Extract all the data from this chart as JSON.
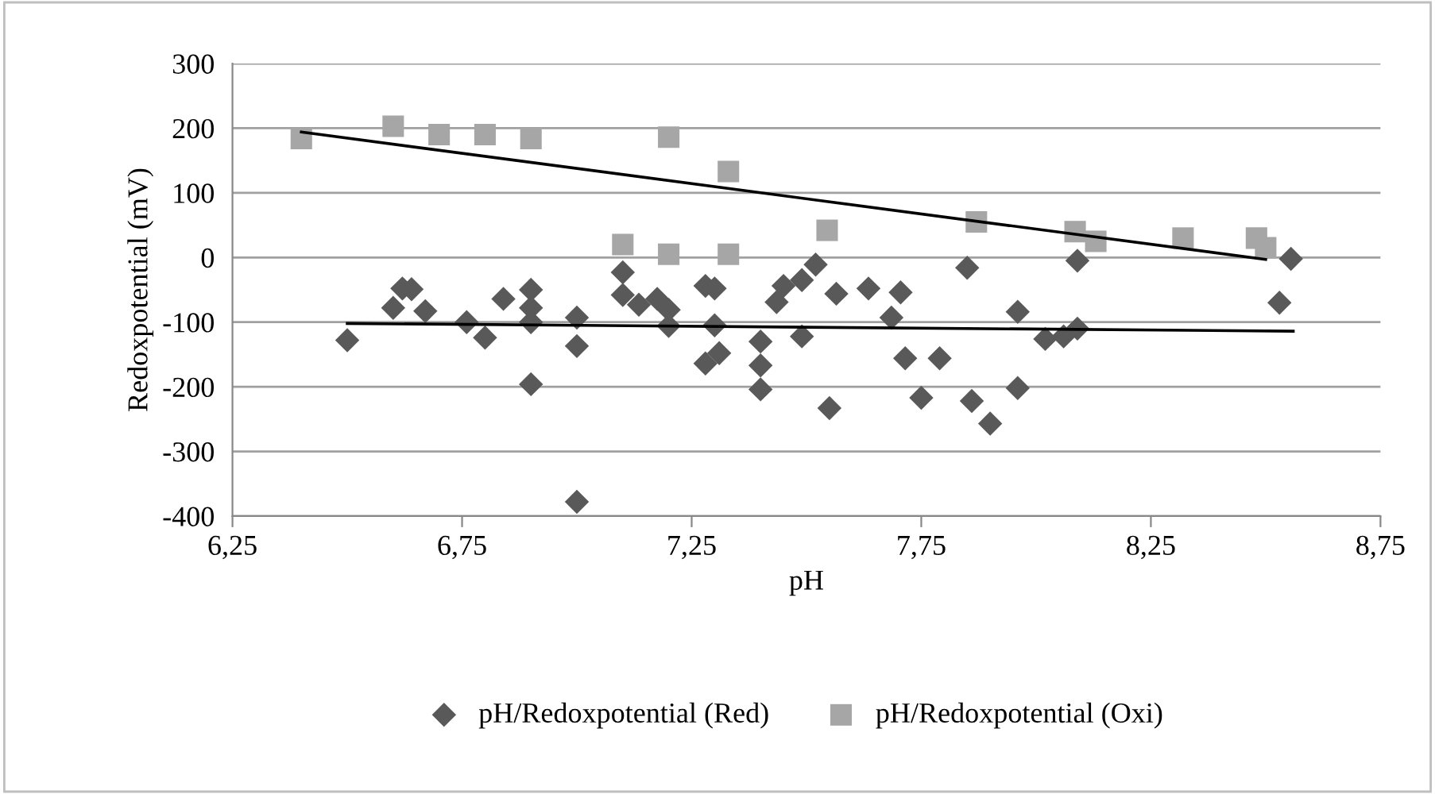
{
  "chart_data": {
    "type": "scatter",
    "xlabel": "pH",
    "ylabel": "Redoxpotential (mV)",
    "xlim": [
      6.25,
      8.75
    ],
    "ylim": [
      -400,
      300
    ],
    "xticks": [
      {
        "value": 6.25,
        "label": "6,25"
      },
      {
        "value": 6.75,
        "label": "6,75"
      },
      {
        "value": 7.25,
        "label": "7,25"
      },
      {
        "value": 7.75,
        "label": "7,75"
      },
      {
        "value": 8.25,
        "label": "8,25"
      },
      {
        "value": 8.75,
        "label": "8,75"
      }
    ],
    "yticks": [
      -400,
      -300,
      -200,
      -100,
      0,
      100,
      200,
      300
    ],
    "grid": "y",
    "legend": "bottom",
    "series": [
      {
        "name": "pH/Redoxpotential (Red)",
        "color": "#595959",
        "marker": "diamond",
        "x": [
          6.5,
          6.6,
          6.62,
          6.64,
          6.67,
          6.76,
          6.8,
          6.84,
          6.9,
          6.9,
          6.9,
          6.9,
          7.0,
          7.0,
          7.0,
          7.1,
          7.1,
          7.135,
          7.175,
          7.2,
          7.2,
          7.28,
          7.3,
          7.3,
          7.28,
          7.31,
          7.4,
          7.4,
          7.4,
          7.435,
          7.45,
          7.52,
          7.49,
          7.49,
          7.55,
          7.565,
          7.635,
          7.705,
          7.685,
          7.715,
          7.79,
          7.75,
          7.85,
          7.86,
          7.9,
          7.96,
          7.96,
          8.02,
          8.06,
          8.09,
          8.09,
          8.555,
          8.53
        ],
        "values": [
          -128,
          -78,
          -48,
          -49,
          -83,
          -100,
          -124,
          -64,
          -50,
          -78,
          -100,
          -196,
          -93,
          -137,
          -378,
          -23,
          -58,
          -73,
          -64,
          -81,
          -106,
          -44,
          -48,
          -105,
          -164,
          -148,
          -130,
          -167,
          -204,
          -69,
          -44,
          -11,
          -35,
          -122,
          -233,
          -56,
          -48,
          -54,
          -93,
          -156,
          -156,
          -217,
          -16,
          -222,
          -257,
          -84,
          -202,
          -126,
          -122,
          -110,
          -5,
          -2,
          -70
        ]
      },
      {
        "name": "pH/Redoxpotential (Oxi)",
        "color": "#a6a6a6",
        "marker": "square",
        "x": [
          6.4,
          6.6,
          6.7,
          6.8,
          6.9,
          7.2,
          7.1,
          7.2,
          7.33,
          7.33,
          7.545,
          7.87,
          8.085,
          8.13,
          8.32,
          8.48,
          8.5
        ],
        "values": [
          184,
          203,
          190,
          190,
          184,
          186,
          20,
          5,
          133,
          5,
          42,
          55,
          40,
          25,
          30,
          30,
          15
        ]
      },
      {
        "type": "line",
        "color": "#000000",
        "marker": "none",
        "x": [
          6.5,
          8.56
        ],
        "values": [
          -102,
          -114
        ]
      },
      {
        "type": "line",
        "color": "#000000",
        "marker": "none",
        "x": [
          6.4,
          8.5
        ],
        "values": [
          194,
          -3
        ]
      }
    ]
  }
}
